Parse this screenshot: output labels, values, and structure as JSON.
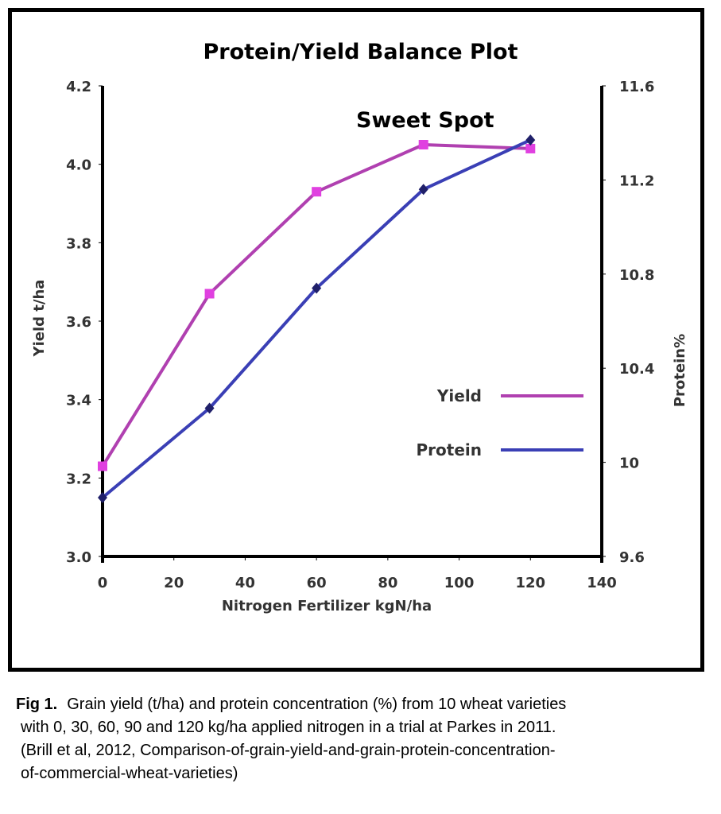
{
  "chart_data": {
    "type": "line",
    "title": "Protein/Yield Balance Plot",
    "annotation": "Sweet Spot",
    "xlabel": "Nitrogen Fertilizer kgN/ha",
    "ylabel_left": "Yield t/ha",
    "ylabel_right": "Protein%",
    "xlim": [
      0,
      140
    ],
    "ylim_left": [
      3.0,
      4.2
    ],
    "ylim_right": [
      9.6,
      11.6
    ],
    "x_ticks": [
      "0",
      "20",
      "40",
      "60",
      "80",
      "100",
      "120",
      "140"
    ],
    "y_left_ticks": [
      "3.0",
      "3.2",
      "3.4",
      "3.6",
      "3.8",
      "4.0",
      "4.2"
    ],
    "y_right_ticks": [
      "9.6",
      "10",
      "10.4",
      "10.8",
      "11.2",
      "11.6"
    ],
    "grid": false,
    "legend_position": "right",
    "series": [
      {
        "name": "Yield",
        "axis": "left",
        "color": "#b040b0",
        "marker_color": "#e040e0",
        "x": [
          0,
          30,
          60,
          90,
          120
        ],
        "values": [
          3.23,
          3.67,
          3.93,
          4.05,
          4.04
        ]
      },
      {
        "name": "Protein",
        "axis": "right",
        "color": "#3a3fb5",
        "marker_color": "#20206a",
        "x": [
          0,
          30,
          60,
          90,
          120
        ],
        "values": [
          9.85,
          10.23,
          10.74,
          11.16,
          11.37
        ]
      }
    ]
  },
  "caption": {
    "fig_label": "Fig 1.",
    "line1": "Grain yield (t/ha) and protein concentration (%) from 10 wheat varieties",
    "line2": "with 0, 30, 60, 90 and 120 kg/ha applied nitrogen in a trial at Parkes in 2011.",
    "line3": "(Brill et al, 2012, Comparison-of-grain-yield-and-grain-protein-concentration-",
    "line4": "of-commercial-wheat-varieties)"
  }
}
